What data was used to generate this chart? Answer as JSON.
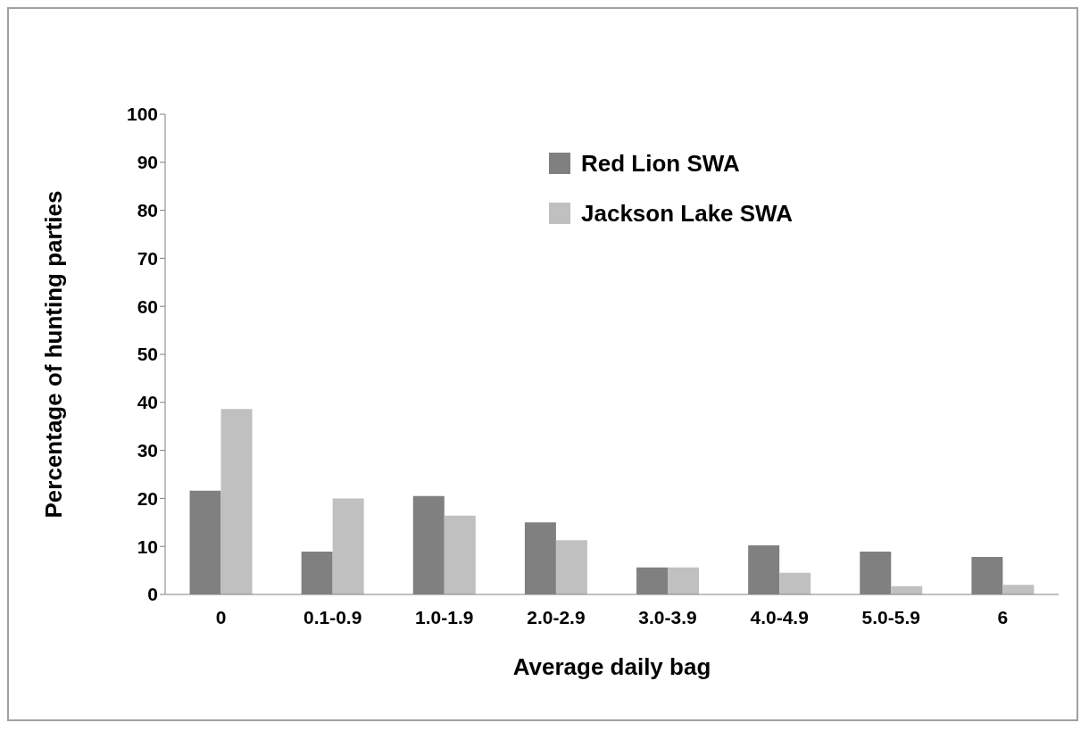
{
  "chart_data": {
    "type": "bar",
    "xlabel": "Average daily bag",
    "ylabel": "Percentage of hunting parties",
    "categories": [
      "0",
      "0.1-0.9",
      "1.0-1.9",
      "2.0-2.9",
      "3.0-3.9",
      "4.0-4.9",
      "5.0-5.9",
      "6"
    ],
    "series": [
      {
        "name": "Red Lion SWA",
        "color": "#808080",
        "values": [
          21.6,
          8.9,
          20.5,
          15.0,
          5.6,
          10.2,
          8.9,
          7.8
        ]
      },
      {
        "name": "Jackson Lake SWA",
        "color": "#c0c0c0",
        "values": [
          38.6,
          20.0,
          16.4,
          11.3,
          5.6,
          4.5,
          1.7,
          2.0
        ]
      }
    ],
    "ylim": [
      0,
      100
    ],
    "yticks": [
      0,
      10,
      20,
      30,
      40,
      50,
      60,
      70,
      80,
      90,
      100
    ],
    "grid": false,
    "legend": "top"
  }
}
